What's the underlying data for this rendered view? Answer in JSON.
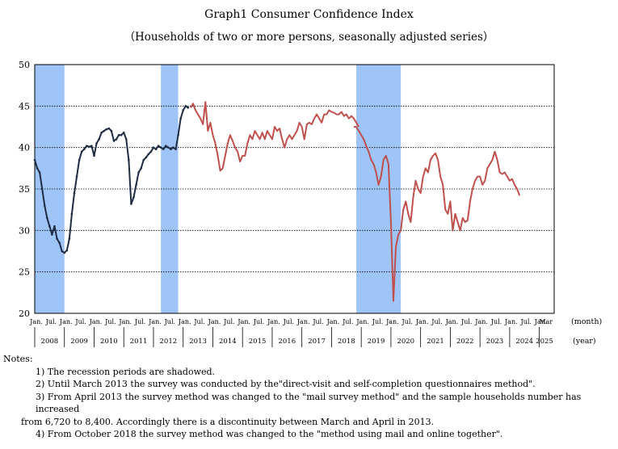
{
  "chart_data": {
    "type": "line",
    "title": "Graph1    Consumer Confidence Index",
    "subtitle": "（Households of two or more persons, seasonally adjusted series）",
    "ylim": [
      20,
      50
    ],
    "yticks": [
      "20",
      "25",
      "30",
      "35",
      "40",
      "45",
      "50"
    ],
    "xlabel_month": "(month)",
    "xlabel_year": "(year)",
    "month_ticks": [
      "Jan.",
      "Jul.",
      "Jan.",
      "Jul.",
      "Jan.",
      "Jul.",
      "Jan.",
      "Jul.",
      "Jan.",
      "Jul.",
      "Jan.",
      "Jul.",
      "Jan.",
      "Jul.",
      "Jan.",
      "Jul.",
      "Jan.",
      "Jul.",
      "Jan.",
      "Jul.",
      "Jan.",
      "Jul.",
      "Jan.",
      "Jul.",
      "Jan.",
      "Jul.",
      "Jan.",
      "Jul.",
      "Jan.",
      "Jul.",
      "Jan.",
      "Jul.",
      "Jan.",
      "Jul.",
      "Jan.",
      "Mar"
    ],
    "years": [
      "2008",
      "2009",
      "2010",
      "2011",
      "2012",
      "2013",
      "2014",
      "2015",
      "2016",
      "2017",
      "2018",
      "2019",
      "2020",
      "2021",
      "2022",
      "2023",
      "2024",
      "2025"
    ],
    "recessions": [
      {
        "start": "2008-01",
        "end": "2009-01"
      },
      {
        "start": "2012-04",
        "end": "2012-11"
      },
      {
        "start": "2018-11",
        "end": "2020-05"
      }
    ],
    "series": [
      {
        "name": "Until March 2013 (direct-visit and self-completion)",
        "color": "#1f2d44",
        "start": "2008-01",
        "values": [
          38.5,
          37.5,
          37.0,
          35.0,
          33.0,
          31.5,
          30.5,
          29.5,
          30.5,
          29.0,
          28.5,
          27.5,
          27.3,
          27.6,
          29.0,
          32.0,
          34.5,
          36.5,
          38.5,
          39.5,
          39.8,
          40.2,
          40.1,
          40.2,
          39.0,
          40.5,
          41.0,
          41.8,
          42.0,
          42.2,
          42.3,
          42.0,
          40.8,
          41.0,
          41.5,
          41.5,
          41.8,
          41.0,
          38.5,
          33.2,
          34.0,
          35.5,
          37.0,
          37.5,
          38.5,
          38.8,
          39.2,
          39.5,
          40.0,
          39.8,
          40.2,
          40.0,
          39.8,
          40.2,
          40.0,
          39.8,
          40.0,
          39.8,
          41.5,
          43.5,
          44.5,
          45.0,
          44.8
        ]
      },
      {
        "name": "From April 2013 (mail survey)",
        "color": "#c0504d",
        "start": "2013-04",
        "values": [
          44.8,
          45.3,
          44.5,
          44.0,
          43.5,
          42.8,
          45.5,
          42.0,
          43.0,
          41.5,
          40.5,
          39.0,
          37.2,
          37.5,
          39.0,
          40.5,
          41.5,
          40.8,
          40.0,
          39.5,
          38.3,
          39.0,
          39.0,
          40.5,
          41.5,
          41.0,
          42.0,
          41.5,
          41.0,
          41.8,
          41.0,
          42.0,
          41.5,
          41.0,
          42.5,
          42.0,
          42.3,
          41.0,
          40.0,
          41.0,
          41.5,
          41.0,
          41.5,
          42.0,
          43.0,
          42.5,
          41.0,
          42.8,
          43.0,
          42.8,
          43.5,
          44.0,
          43.5,
          43.0,
          44.0,
          44.0,
          44.5,
          44.3,
          44.2,
          44.0,
          44.0,
          44.3,
          43.8,
          44.0,
          43.5,
          43.8,
          43.5,
          43.0,
          42.5
        ]
      },
      {
        "name": "From October 2018 (mail and online)",
        "color": "#c0504d",
        "start": "2018-10",
        "values": [
          42.5,
          42.5,
          42.0,
          41.5,
          41.0,
          40.2,
          39.5,
          38.5,
          38.0,
          37.0,
          35.5,
          36.5,
          38.5,
          39.0,
          38.0,
          31.0,
          21.5,
          28.0,
          29.5,
          30.0,
          32.5,
          33.5,
          32.0,
          31.0,
          34.0,
          36.0,
          35.0,
          34.5,
          36.5,
          37.5,
          37.0,
          38.5,
          39.0,
          39.3,
          38.5,
          36.5,
          35.5,
          32.5,
          32.0,
          33.5,
          30.0,
          32.0,
          31.0,
          30.0,
          31.5,
          31.0,
          31.2,
          33.5,
          35.0,
          36.0,
          36.5,
          36.5,
          35.5,
          36.0,
          37.5,
          38.0,
          38.5,
          39.5,
          38.5,
          37.0,
          36.8,
          37.0,
          36.5,
          36.0,
          36.2,
          35.5,
          35.0,
          34.2
        ]
      }
    ]
  },
  "notes": {
    "header": "Notes:",
    "items": [
      "1) The recession periods are shadowed.",
      "2) Until March 2013 the survey was conducted by the\"direct-visit and self-completion questionnaires method\".",
      "3) From April 2013 the survey method was changed to the \"mail survey method\" and the sample households number has increased",
      "from 6,720 to 8,400. Accordingly there is a discontinuity between March and April in 2013.",
      "4) From October 2018 the survey method was changed to the \"method using mail and online together\"."
    ]
  }
}
